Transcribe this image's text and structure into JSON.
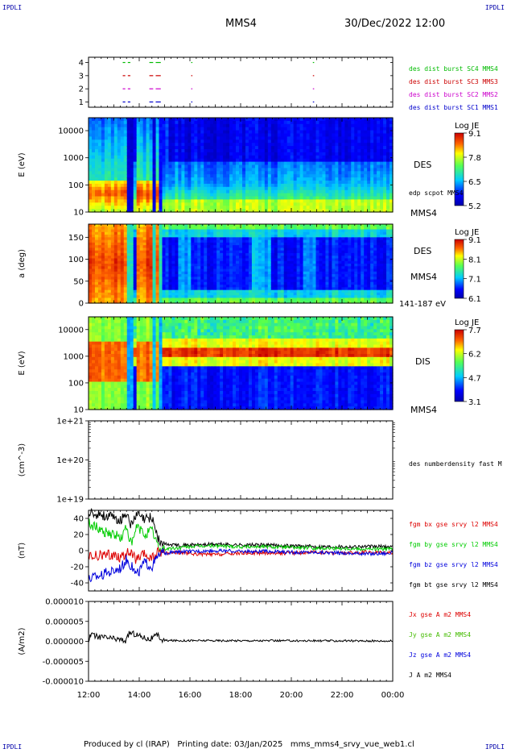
{
  "corner_label": "IPDLI",
  "header": {
    "spacecraft": "MMS4",
    "datetime": "30/Dec/2022 12:00"
  },
  "footer": "Produced by cl (IRAP)   Printing date: 03/Jan/2025   mms_mms4_srvy_vue_web1.cl",
  "chart_data": [
    {
      "id": "panel-burst",
      "type": "scatter",
      "title": "",
      "ylabel": "",
      "yticks": [
        "1",
        "2",
        "3",
        "4"
      ],
      "ylim": [
        0.6,
        4.4
      ],
      "legend": [
        {
          "label": "des dist burst SC1 MMS1",
          "color": "#0000cc",
          "row": 1
        },
        {
          "label": "des dist burst SC2 MMS2",
          "color": "#cc00cc",
          "row": 2
        },
        {
          "label": "des dist burst SC3 MMS3",
          "color": "#cc0000",
          "row": 3
        },
        {
          "label": "des dist burst SC4 MMS4",
          "color": "#00bb00",
          "row": 4
        }
      ],
      "segments": [
        [
          13.35,
          13.45
        ],
        [
          13.55,
          13.65
        ],
        [
          14.4,
          14.55
        ],
        [
          14.65,
          14.85
        ],
        [
          16.05,
          16.08
        ],
        [
          20.85,
          20.9
        ]
      ]
    },
    {
      "id": "panel-des-energy",
      "type": "heatmap",
      "ylabel": "E (eV)",
      "yscale": "log",
      "ylim": [
        10,
        30000
      ],
      "yticks": [
        "10",
        "100",
        "1000",
        "10000"
      ],
      "side_labels": [
        "DES",
        "edp scpot MMS4",
        "MMS4"
      ],
      "colorbar": {
        "title": "Log JE",
        "ticks": [
          "9.1",
          "7.8",
          "6.5",
          "5.2"
        ]
      }
    },
    {
      "id": "panel-des-pitch",
      "type": "heatmap",
      "ylabel": "a (deg)",
      "ylim": [
        0,
        180
      ],
      "yticks": [
        "0",
        "50",
        "100",
        "150"
      ],
      "side_labels": [
        "DES",
        "MMS4",
        "141-187 eV"
      ],
      "colorbar": {
        "title": "Log JE",
        "ticks": [
          "9.1",
          "8.1",
          "7.1",
          "6.1"
        ]
      }
    },
    {
      "id": "panel-dis-energy",
      "type": "heatmap",
      "ylabel": "E (eV)",
      "yscale": "log",
      "ylim": [
        10,
        30000
      ],
      "yticks": [
        "10",
        "100",
        "1000",
        "10000"
      ],
      "side_labels": [
        "DIS",
        "MMS4"
      ],
      "colorbar": {
        "title": "Log JE",
        "ticks": [
          "7.7",
          "6.2",
          "4.7",
          "3.1"
        ]
      }
    },
    {
      "id": "panel-density",
      "type": "line",
      "ylabel": "(cm^-3)",
      "yscale": "log",
      "yticks": [
        "1e+19",
        "1e+20",
        "1e+21"
      ],
      "ylim": [
        1e+19,
        1e+21
      ],
      "legend": [
        {
          "label": "des numberdensity fast M",
          "color": "#000000"
        }
      ],
      "series": []
    },
    {
      "id": "panel-fgm",
      "type": "line",
      "ylabel": "(nT)",
      "ylim": [
        -50,
        50
      ],
      "yticks": [
        "-40",
        "-20",
        "0",
        "20",
        "40"
      ],
      "legend": [
        {
          "label": "fgm bx gse srvy l2 MMS4",
          "color": "#dd0000"
        },
        {
          "label": "fgm by gse srvy l2 MMS4",
          "color": "#00cc00"
        },
        {
          "label": "fgm bz gse srvy l2 MMS4",
          "color": "#0000dd"
        },
        {
          "label": "fgm bt gse srvy l2 MMS4",
          "color": "#000000"
        }
      ],
      "x": [
        12.0,
        12.5,
        13.0,
        13.3,
        13.5,
        13.7,
        13.9,
        14.2,
        14.5,
        14.8,
        15.0,
        15.5,
        16.0,
        17.0,
        18.0,
        19.0,
        20.0,
        21.0,
        22.0,
        23.0,
        24.0
      ],
      "series": [
        {
          "name": "bx",
          "values": [
            -8,
            -6,
            -5,
            -8,
            -3,
            -4,
            -12,
            -5,
            -10,
            0,
            -3,
            -2,
            -4,
            -5,
            -3,
            -3,
            -3,
            -2,
            -3,
            -2,
            -2
          ]
        },
        {
          "name": "by",
          "values": [
            35,
            25,
            20,
            15,
            30,
            5,
            30,
            20,
            25,
            2,
            2,
            3,
            5,
            6,
            5,
            5,
            4,
            3,
            3,
            2,
            2
          ]
        },
        {
          "name": "bz",
          "values": [
            -35,
            -30,
            -25,
            -20,
            -10,
            -20,
            -30,
            -15,
            -20,
            -5,
            -3,
            -2,
            -1,
            0,
            -1,
            -1,
            -2,
            -2,
            -3,
            -4,
            -3
          ]
        },
        {
          "name": "bt",
          "values": [
            47,
            45,
            40,
            38,
            48,
            30,
            45,
            38,
            42,
            10,
            8,
            7,
            7,
            8,
            7,
            7,
            6,
            5,
            5,
            5,
            5
          ]
        }
      ]
    },
    {
      "id": "panel-current",
      "type": "line",
      "ylabel": "(A/m2)",
      "ylim": [
        -1e-05,
        1e-05
      ],
      "yticks": [
        "0.000010",
        "0.000005",
        "0.000000",
        "-0.000005",
        "-0.000010"
      ],
      "legend": [
        {
          "label": "Jx gse A m2 MMS4",
          "color": "#dd0000"
        },
        {
          "label": "Jy gse A m2 MMS4",
          "color": "#44bb00"
        },
        {
          "label": "Jz gse A m2 MMS4",
          "color": "#0000dd"
        },
        {
          "label": "J A m2 MMS4",
          "color": "#000000"
        }
      ],
      "x": [
        12.0,
        12.05,
        13.5,
        13.6,
        13.75,
        14.4,
        14.75,
        14.9,
        24.0
      ],
      "series": [
        {
          "name": "J",
          "values": [
            2e-07,
            1.5e-06,
            2e-07,
            2.2e-06,
            2e-06,
            5e-07,
            1.5e-06,
            2e-07,
            1e-07
          ]
        }
      ]
    }
  ],
  "time_axis": {
    "start_hour": 12,
    "end_hour": 24,
    "ticks": [
      "12:00",
      "14:00",
      "16:00",
      "18:00",
      "20:00",
      "22:00",
      "00:00"
    ]
  }
}
